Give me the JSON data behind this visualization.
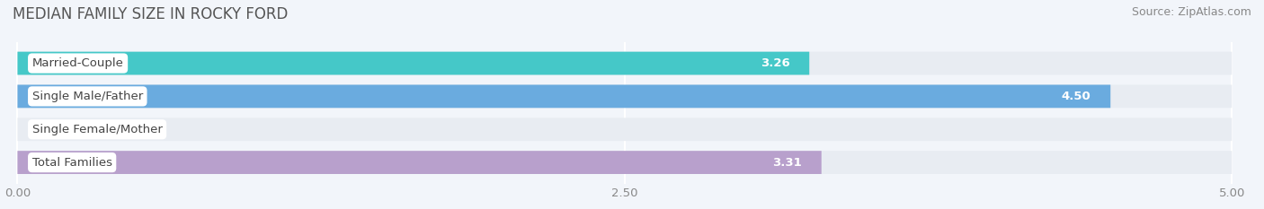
{
  "title": "MEDIAN FAMILY SIZE IN ROCKY FORD",
  "source": "Source: ZipAtlas.com",
  "categories": [
    "Married-Couple",
    "Single Male/Father",
    "Single Female/Mother",
    "Total Families"
  ],
  "values": [
    3.26,
    4.5,
    0.0,
    3.31
  ],
  "bar_colors": [
    "#45C8C8",
    "#6AABDF",
    "#F5A8BE",
    "#B8A0CC"
  ],
  "xlim": [
    0.0,
    5.0
  ],
  "xticks": [
    0.0,
    2.5,
    5.0
  ],
  "xticklabels": [
    "0.00",
    "2.50",
    "5.00"
  ],
  "background_color": "#f2f5fa",
  "bar_bg_color": "#e8ecf2",
  "title_fontsize": 12,
  "label_fontsize": 9.5,
  "value_fontsize": 9.5,
  "source_fontsize": 9
}
